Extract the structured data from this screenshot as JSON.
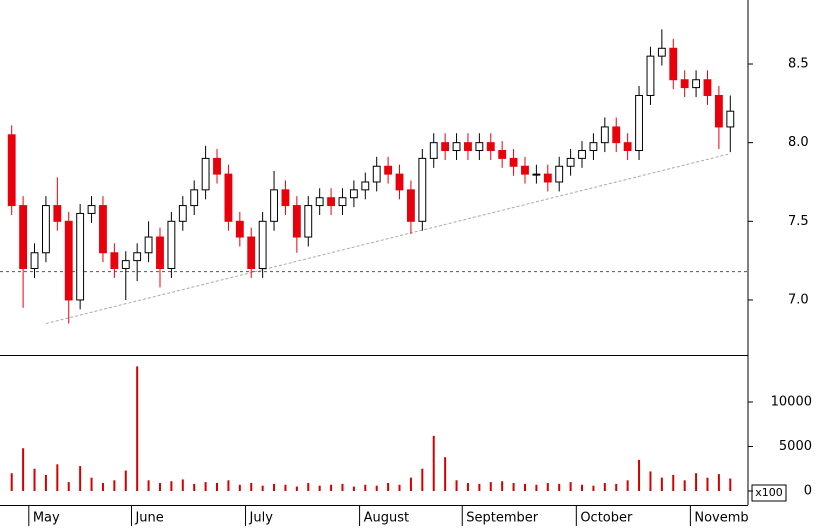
{
  "chart_data": {
    "type": "candlestick",
    "categories": [
      null,
      null,
      "May",
      null,
      null,
      null,
      null,
      null,
      null,
      null,
      null,
      "June",
      null,
      null,
      null,
      null,
      null,
      null,
      null,
      null,
      null,
      "July",
      null,
      null,
      null,
      null,
      null,
      null,
      null,
      null,
      null,
      "August",
      null,
      null,
      null,
      null,
      null,
      null,
      null,
      null,
      "September",
      null,
      null,
      null,
      null,
      null,
      null,
      null,
      null,
      null,
      "October",
      null,
      null,
      null,
      null,
      null,
      null,
      null,
      null,
      null,
      "November",
      null,
      null,
      null
    ],
    "open": [
      8.05,
      7.6,
      7.2,
      7.3,
      7.6,
      7.5,
      7.0,
      7.55,
      7.6,
      7.3,
      7.2,
      7.25,
      7.3,
      7.4,
      7.2,
      7.5,
      7.6,
      7.7,
      7.9,
      7.8,
      7.5,
      7.4,
      7.2,
      7.5,
      7.7,
      7.6,
      7.4,
      7.6,
      7.65,
      7.6,
      7.65,
      7.7,
      7.75,
      7.85,
      7.8,
      7.7,
      7.5,
      7.9,
      8.0,
      7.95,
      8.0,
      7.95,
      8.0,
      7.95,
      7.9,
      7.85,
      7.8,
      7.8,
      7.75,
      7.85,
      7.9,
      7.95,
      8.0,
      8.1,
      8.0,
      7.95,
      8.3,
      8.55,
      8.6,
      8.4,
      8.35,
      8.4,
      8.3,
      8.1
    ],
    "high": [
      8.11,
      7.66,
      7.36,
      7.66,
      7.78,
      7.56,
      7.61,
      7.66,
      7.66,
      7.36,
      7.31,
      7.36,
      7.5,
      7.46,
      7.56,
      7.66,
      7.76,
      7.98,
      7.96,
      7.86,
      7.56,
      7.46,
      7.56,
      7.82,
      7.76,
      7.66,
      7.66,
      7.71,
      7.71,
      7.71,
      7.76,
      7.81,
      7.91,
      7.91,
      7.86,
      7.76,
      7.96,
      8.06,
      8.06,
      8.06,
      8.06,
      8.06,
      8.06,
      8.01,
      7.96,
      7.91,
      7.86,
      7.86,
      7.91,
      7.96,
      8.01,
      8.06,
      8.16,
      8.16,
      8.06,
      8.36,
      8.61,
      8.72,
      8.66,
      8.46,
      8.46,
      8.46,
      8.36,
      8.3
    ],
    "low": [
      7.54,
      6.95,
      7.14,
      7.24,
      7.44,
      6.85,
      6.94,
      7.49,
      7.24,
      7.14,
      7.0,
      7.12,
      7.24,
      7.08,
      7.14,
      7.44,
      7.54,
      7.64,
      7.74,
      7.44,
      7.34,
      7.14,
      7.14,
      7.44,
      7.54,
      7.3,
      7.34,
      7.54,
      7.54,
      7.54,
      7.59,
      7.64,
      7.69,
      7.74,
      7.64,
      7.42,
      7.44,
      7.84,
      7.89,
      7.89,
      7.89,
      7.89,
      7.89,
      7.84,
      7.79,
      7.74,
      7.74,
      7.69,
      7.69,
      7.79,
      7.84,
      7.89,
      7.94,
      7.94,
      7.89,
      7.89,
      8.24,
      8.49,
      8.34,
      8.29,
      8.29,
      8.24,
      7.96,
      7.94
    ],
    "close": [
      7.6,
      7.2,
      7.3,
      7.6,
      7.5,
      7.0,
      7.55,
      7.6,
      7.3,
      7.2,
      7.25,
      7.3,
      7.4,
      7.2,
      7.5,
      7.6,
      7.7,
      7.9,
      7.8,
      7.5,
      7.4,
      7.2,
      7.5,
      7.7,
      7.6,
      7.4,
      7.6,
      7.65,
      7.6,
      7.65,
      7.7,
      7.75,
      7.85,
      7.8,
      7.7,
      7.5,
      7.9,
      8.0,
      7.95,
      8.0,
      7.95,
      8.0,
      7.95,
      7.9,
      7.85,
      7.8,
      7.8,
      7.75,
      7.85,
      7.9,
      7.95,
      8.0,
      8.1,
      8.0,
      7.95,
      8.3,
      8.55,
      8.6,
      8.4,
      8.35,
      8.4,
      8.3,
      8.1,
      8.2
    ],
    "volume": [
      2000,
      4800,
      2500,
      1800,
      3000,
      1000,
      2800,
      1500,
      900,
      1200,
      2300,
      14000,
      1200,
      900,
      1100,
      1300,
      800,
      1000,
      900,
      1200,
      700,
      900,
      600,
      800,
      700,
      500,
      900,
      600,
      700,
      800,
      500,
      700,
      600,
      900,
      700,
      1500,
      2500,
      6200,
      3800,
      1200,
      900,
      800,
      1000,
      1100,
      900,
      800,
      700,
      900,
      800,
      1000,
      700,
      600,
      900,
      800,
      1200,
      3500,
      2200,
      1500,
      1800,
      1200,
      2000,
      1500,
      1900,
      1400
    ],
    "up_color": "#ffffff",
    "down_color": "#e8000b",
    "volume_color": "#d40000",
    "ylim": [
      6.65,
      8.907
    ],
    "yticks": [
      {
        "value": 7,
        "label": "7.0"
      },
      {
        "value": 7.5,
        "label": "7.5"
      },
      {
        "value": 8,
        "label": "8.0"
      },
      {
        "value": 8.5,
        "label": "8.5"
      }
    ],
    "volume_ylim": [
      -1573,
      15169
    ],
    "volume_yticks": [
      0,
      5000,
      10000
    ],
    "volume_unit": "x100",
    "trendline": {
      "x": [
        3,
        63
      ],
      "y": [
        6.85,
        7.93
      ]
    },
    "hline": 7.18
  }
}
